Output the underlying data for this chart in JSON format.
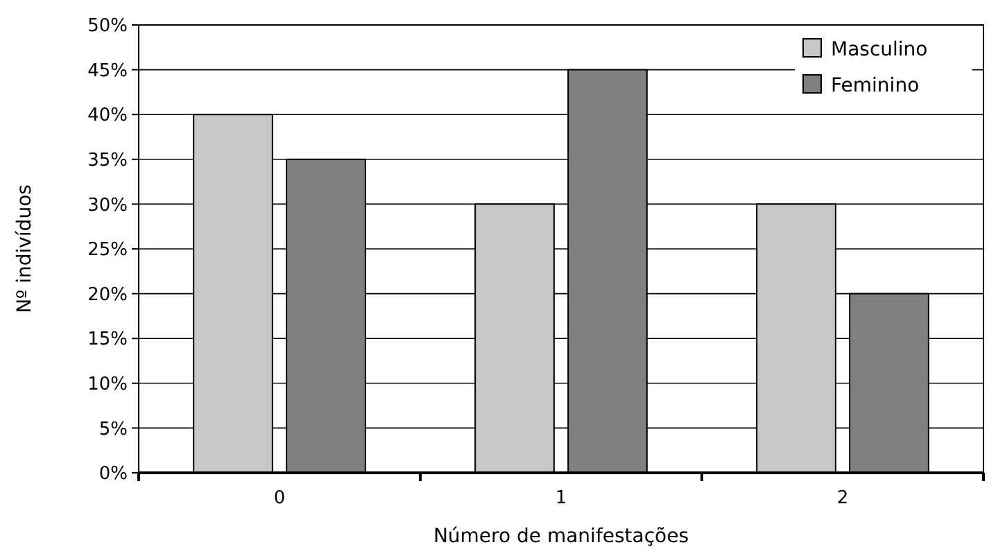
{
  "chart_data": {
    "type": "bar",
    "xlabel": "Número de manifestações",
    "ylabel": "Nº indivíduos",
    "categories": [
      "0",
      "1",
      "2"
    ],
    "series": [
      {
        "name": "Masculino",
        "color": "#c8c8c8",
        "values": [
          40,
          30,
          30
        ]
      },
      {
        "name": "Feminino",
        "color": "#808080",
        "values": [
          35,
          45,
          20
        ]
      }
    ],
    "ylim": [
      0,
      50
    ],
    "yticks": [
      {
        "value": 0,
        "label": "0%"
      },
      {
        "value": 5,
        "label": "5%"
      },
      {
        "value": 10,
        "label": "10%"
      },
      {
        "value": 15,
        "label": "15%"
      },
      {
        "value": 20,
        "label": "20%"
      },
      {
        "value": 25,
        "label": "25%"
      },
      {
        "value": 30,
        "label": "30%"
      },
      {
        "value": 35,
        "label": "35%"
      },
      {
        "value": 40,
        "label": "40%"
      },
      {
        "value": 45,
        "label": "45%"
      },
      {
        "value": 50,
        "label": "50%"
      }
    ],
    "grid": "y",
    "legend": "top right"
  }
}
